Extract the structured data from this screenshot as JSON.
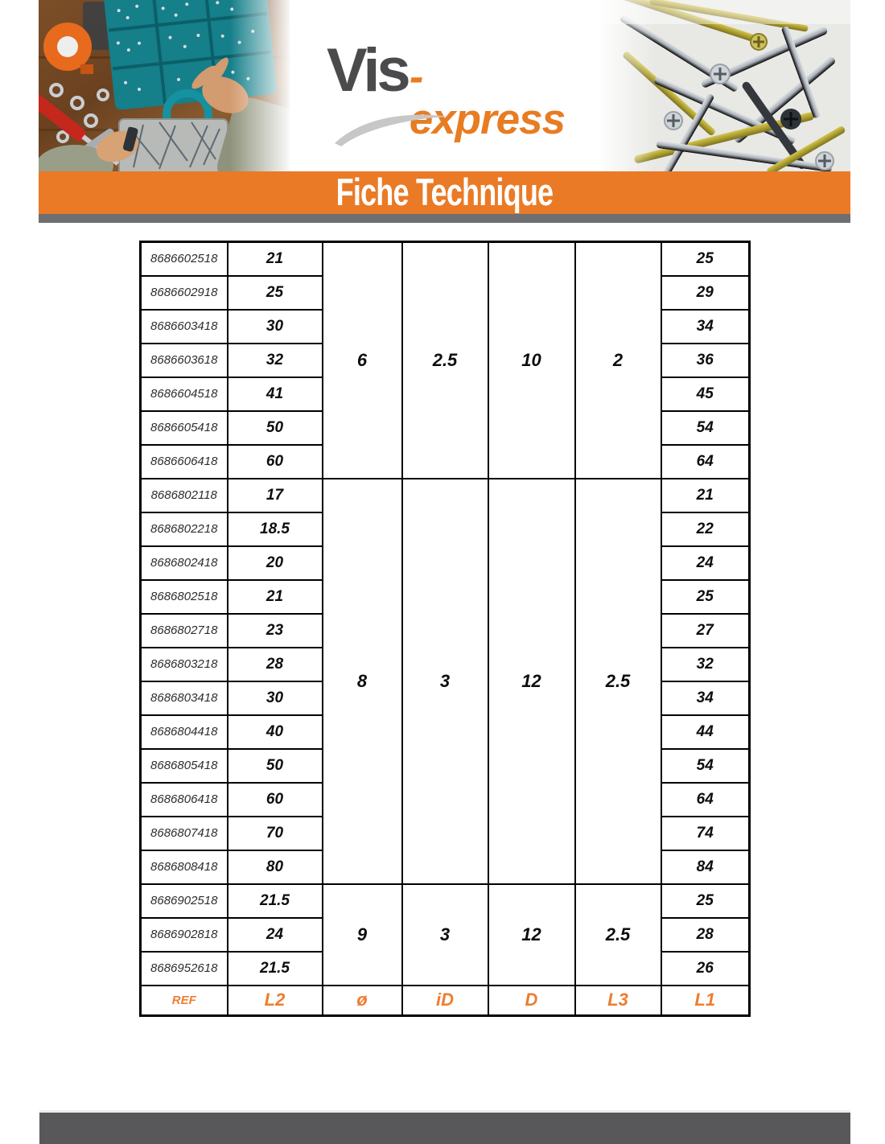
{
  "colors": {
    "accent_orange": "#EA7A26",
    "logo_gray": "#4B4B4D",
    "logo_orange": "#E87C22",
    "banner_shadow_gray": "#6E6F71",
    "bottom_bar_gray": "#58585A",
    "footer_label_orange": "#ED7D2F",
    "table_border": "#000000"
  },
  "header": {
    "logo_primary": "Vis",
    "logo_secondary": "-express",
    "banner_title": "Fiche Technique"
  },
  "table": {
    "footer_labels": [
      "REF",
      "L2",
      "ø",
      "iD",
      "D",
      "L3",
      "L1"
    ],
    "footer_label_names": [
      "footer-label-ref",
      "footer-label-l2",
      "footer-label-diameter",
      "footer-label-id",
      "footer-label-d",
      "footer-label-l3",
      "footer-label-l1"
    ],
    "groups": [
      {
        "shared": {
          "diameter": "6",
          "inner_diameter": "2.5",
          "head_diameter": "10",
          "l3": "2"
        },
        "rows": [
          {
            "ref": "8686602518",
            "l2": "21",
            "l1": "25"
          },
          {
            "ref": "8686602918",
            "l2": "25",
            "l1": "29"
          },
          {
            "ref": "8686603418",
            "l2": "30",
            "l1": "34"
          },
          {
            "ref": "8686603618",
            "l2": "32",
            "l1": "36"
          },
          {
            "ref": "8686604518",
            "l2": "41",
            "l1": "45"
          },
          {
            "ref": "8686605418",
            "l2": "50",
            "l1": "54"
          },
          {
            "ref": "8686606418",
            "l2": "60",
            "l1": "64"
          }
        ]
      },
      {
        "shared": {
          "diameter": "8",
          "inner_diameter": "3",
          "head_diameter": "12",
          "l3": "2.5"
        },
        "rows": [
          {
            "ref": "8686802118",
            "l2": "17",
            "l1": "21"
          },
          {
            "ref": "8686802218",
            "l2": "18.5",
            "l1": "22"
          },
          {
            "ref": "8686802418",
            "l2": "20",
            "l1": "24"
          },
          {
            "ref": "8686802518",
            "l2": "21",
            "l1": "25"
          },
          {
            "ref": "8686802718",
            "l2": "23",
            "l1": "27"
          },
          {
            "ref": "8686803218",
            "l2": "28",
            "l1": "32"
          },
          {
            "ref": "8686803418",
            "l2": "30",
            "l1": "34"
          },
          {
            "ref": "8686804418",
            "l2": "40",
            "l1": "44"
          },
          {
            "ref": "8686805418",
            "l2": "50",
            "l1": "54"
          },
          {
            "ref": "8686806418",
            "l2": "60",
            "l1": "64"
          },
          {
            "ref": "8686807418",
            "l2": "70",
            "l1": "74"
          },
          {
            "ref": "8686808418",
            "l2": "80",
            "l1": "84"
          }
        ]
      },
      {
        "shared": {
          "diameter": "9",
          "inner_diameter": "3",
          "head_diameter": "12",
          "l3": "2.5"
        },
        "rows": [
          {
            "ref": "8686902518",
            "l2": "21.5",
            "l1": "25"
          },
          {
            "ref": "8686902818",
            "l2": "24",
            "l1": "28"
          },
          {
            "ref": "8686952618",
            "l2": "21.5",
            "l1": "26"
          }
        ]
      }
    ]
  }
}
